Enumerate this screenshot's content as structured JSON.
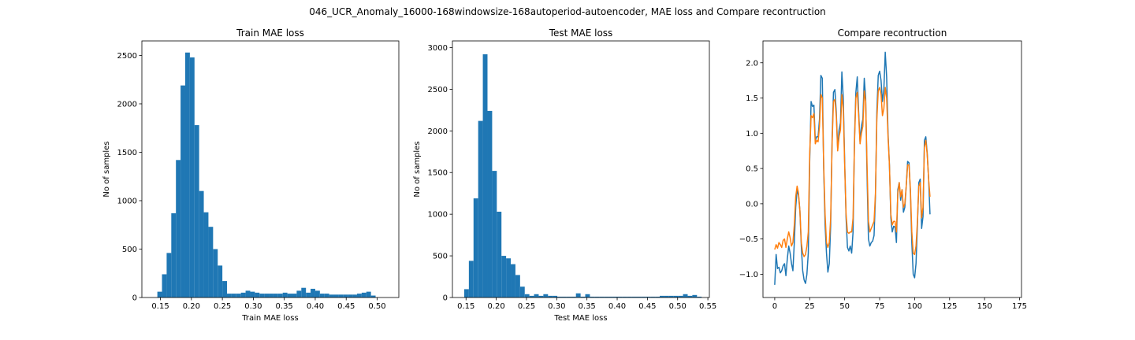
{
  "figure": {
    "suptitle": "046_UCR_Anomaly_16000-168windowsize-168autoperiod-autoencoder, MAE loss and Compare recontruction"
  },
  "chart_data": [
    {
      "type": "bar",
      "title": "Train MAE loss",
      "xlabel": "Train MAE loss",
      "ylabel": "No of samples",
      "xlim": [
        0.12,
        0.535
      ],
      "ylim": [
        0,
        2650
      ],
      "xticks": [
        0.15,
        0.2,
        0.25,
        0.3,
        0.35,
        0.4,
        0.45,
        0.5
      ],
      "xtick_labels": [
        "0.15",
        "0.20",
        "0.25",
        "0.30",
        "0.35",
        "0.40",
        "0.45",
        "0.50"
      ],
      "yticks": [
        0,
        500,
        1000,
        1500,
        2000,
        2500
      ],
      "ytick_labels": [
        "0",
        "500",
        "1000",
        "1500",
        "2000",
        "2500"
      ],
      "bin_start": 0.145,
      "bin_width": 0.0075,
      "color": "#1f77b4",
      "values": [
        60,
        240,
        460,
        870,
        1420,
        2190,
        2530,
        2480,
        1780,
        1100,
        880,
        730,
        500,
        330,
        170,
        40,
        40,
        40,
        50,
        70,
        60,
        50,
        40,
        40,
        40,
        40,
        40,
        50,
        40,
        40,
        70,
        100,
        50,
        90,
        70,
        40,
        40,
        30,
        30,
        30,
        30,
        30,
        30,
        40,
        50,
        60,
        20
      ]
    },
    {
      "type": "bar",
      "title": "Test MAE loss",
      "xlabel": "Test MAE loss",
      "ylabel": "No of samples",
      "xlim": [
        0.1275,
        0.5525
      ],
      "ylim": [
        0,
        3080
      ],
      "xticks": [
        0.15,
        0.2,
        0.25,
        0.3,
        0.35,
        0.4,
        0.45,
        0.5,
        0.55
      ],
      "xtick_labels": [
        "0.15",
        "0.20",
        "0.25",
        "0.30",
        "0.35",
        "0.40",
        "0.45",
        "0.50",
        "0.55"
      ],
      "yticks": [
        0,
        500,
        1000,
        1500,
        2000,
        2500,
        3000
      ],
      "ytick_labels": [
        "0",
        "500",
        "1000",
        "1500",
        "2000",
        "2500",
        "3000"
      ],
      "bin_start": 0.147,
      "bin_width": 0.0077,
      "color": "#1f77b4",
      "values": [
        100,
        440,
        1190,
        2120,
        2920,
        2240,
        1520,
        1030,
        500,
        470,
        400,
        270,
        130,
        40,
        20,
        40,
        20,
        40,
        20,
        20,
        10,
        10,
        10,
        10,
        50,
        10,
        40,
        10,
        10,
        10,
        10,
        10,
        10,
        10,
        10,
        10,
        10,
        10,
        10,
        10,
        10,
        10,
        20,
        20,
        20,
        20,
        20,
        40,
        20,
        30,
        10
      ]
    },
    {
      "type": "line",
      "title": "Compare recontruction",
      "xlabel": "",
      "ylabel": "",
      "xlim": [
        -8.4,
        176.4
      ],
      "ylim": [
        -1.33,
        2.31
      ],
      "xticks": [
        0,
        25,
        50,
        75,
        100,
        125,
        150,
        175
      ],
      "xtick_labels": [
        "0",
        "25",
        "50",
        "75",
        "100",
        "125",
        "150",
        "175"
      ],
      "yticks": [
        -1.0,
        -0.5,
        0.0,
        0.5,
        1.0,
        1.5,
        2.0
      ],
      "ytick_labels": [
        "−1.0",
        "−0.5",
        "0.0",
        "0.5",
        "1.0",
        "1.5",
        "2.0"
      ],
      "series": [
        {
          "color": "#1f77b4",
          "x_start": 0,
          "x_step": 1,
          "values": [
            -1.15,
            -0.72,
            -0.92,
            -0.9,
            -0.98,
            -0.95,
            -0.88,
            -0.85,
            -1.02,
            -0.78,
            -0.6,
            -0.7,
            -0.85,
            -0.95,
            -0.55,
            -0.05,
            0.2,
            0.12,
            -0.1,
            -0.6,
            -0.95,
            -1.08,
            -1.13,
            -1.0,
            -0.7,
            0.6,
            1.45,
            1.38,
            1.4,
            0.9,
            0.95,
            0.95,
            1.2,
            1.82,
            1.78,
            0.5,
            -0.3,
            -0.7,
            -0.97,
            -0.85,
            -0.3,
            0.9,
            1.58,
            1.62,
            1.3,
            0.78,
            1.05,
            1.15,
            1.87,
            1.5,
            0.6,
            -0.2,
            -0.62,
            -0.67,
            -0.6,
            -0.7,
            -0.4,
            0.9,
            1.58,
            1.8,
            1.3,
            0.88,
            1.1,
            1.2,
            1.78,
            1.5,
            0.4,
            -0.5,
            -0.6,
            -0.55,
            -0.53,
            -0.45,
            0.1,
            1.3,
            1.82,
            1.88,
            1.75,
            1.45,
            1.62,
            2.15,
            1.8,
            1.0,
            0.55,
            -0.2,
            -0.4,
            -0.32,
            -0.33,
            -0.55,
            0.2,
            0.3,
            0.05,
            0.2,
            -0.12,
            -0.05,
            0.25,
            0.6,
            0.58,
            0.15,
            -0.55,
            -1.0,
            -1.05,
            -0.85,
            -0.3,
            0.3,
            0.35,
            -0.35,
            -0.18,
            0.9,
            0.95,
            0.72,
            0.35,
            -0.15
          ]
        },
        {
          "color": "#ff7f0e",
          "x_start": 0,
          "x_step": 1,
          "values": [
            -0.65,
            -0.58,
            -0.63,
            -0.55,
            -0.58,
            -0.62,
            -0.52,
            -0.5,
            -0.62,
            -0.5,
            -0.4,
            -0.48,
            -0.6,
            -0.55,
            -0.3,
            0.1,
            0.25,
            0.15,
            -0.1,
            -0.55,
            -0.7,
            -0.75,
            -0.72,
            -0.6,
            -0.4,
            0.7,
            1.25,
            1.22,
            1.28,
            0.85,
            0.9,
            0.88,
            1.1,
            1.55,
            1.5,
            0.55,
            -0.15,
            -0.55,
            -0.62,
            -0.55,
            -0.2,
            0.85,
            1.45,
            1.48,
            1.25,
            0.75,
            0.95,
            1.05,
            1.55,
            1.35,
            0.55,
            -0.15,
            -0.4,
            -0.42,
            -0.4,
            -0.4,
            -0.2,
            0.85,
            1.5,
            1.58,
            1.25,
            0.85,
            1.0,
            1.1,
            1.6,
            1.45,
            0.55,
            -0.25,
            -0.4,
            -0.35,
            -0.3,
            -0.25,
            0.15,
            1.2,
            1.6,
            1.65,
            1.55,
            1.25,
            1.35,
            1.65,
            1.5,
            0.95,
            0.55,
            -0.15,
            -0.3,
            -0.25,
            -0.25,
            -0.4,
            0.15,
            0.3,
            0.1,
            0.2,
            -0.05,
            0.0,
            0.25,
            0.55,
            0.55,
            0.2,
            -0.4,
            -0.7,
            -0.72,
            -0.6,
            -0.25,
            0.25,
            0.3,
            -0.2,
            -0.05,
            0.8,
            0.9,
            0.7,
            0.35,
            0.1
          ]
        }
      ]
    }
  ]
}
